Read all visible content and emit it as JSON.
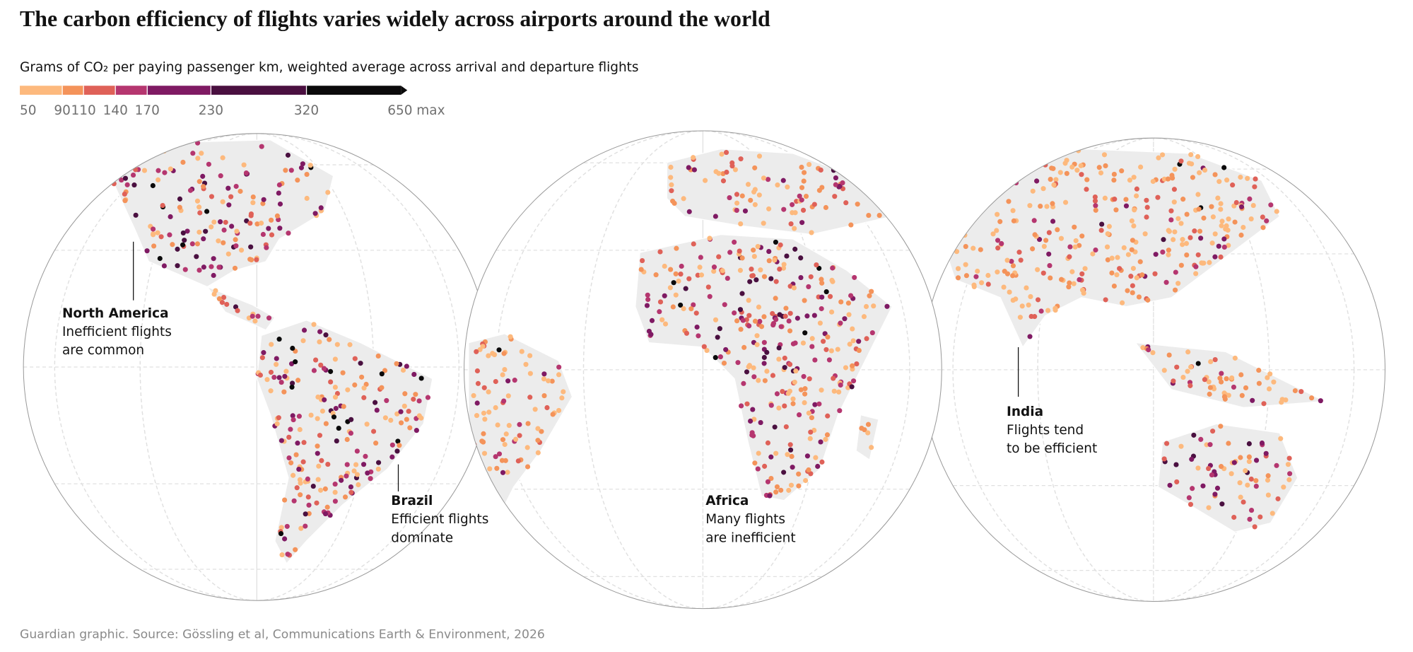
{
  "title": "The carbon efficiency of flights varies widely across airports around the world",
  "subtitle": "Grams of CO₂ per paying passenger km, weighted average across arrival and departure flights",
  "legend": {
    "ticks": [
      50,
      90,
      110,
      140,
      170,
      230,
      320,
      {
        "value": 650,
        "label": "650 max"
      }
    ],
    "colors": [
      "#fdb97d",
      "#f4935a",
      "#df6158",
      "#b5366f",
      "#7f1a63",
      "#4a1040",
      "#0b0a0b"
    ]
  },
  "annotations": [
    {
      "label": "North America",
      "lines": [
        "Inefficient flights",
        "are common"
      ]
    },
    {
      "label": "Brazil",
      "lines": [
        "Efficient flights",
        "dominate"
      ]
    },
    {
      "label": "Africa",
      "lines": [
        "Many flights",
        "are inefficient"
      ]
    },
    {
      "label": "India",
      "lines": [
        "Flights tend",
        "to be efficient"
      ]
    }
  ],
  "source": "Guardian graphic. Source: Gössling et al, Communications Earth & Environment, 2026"
}
